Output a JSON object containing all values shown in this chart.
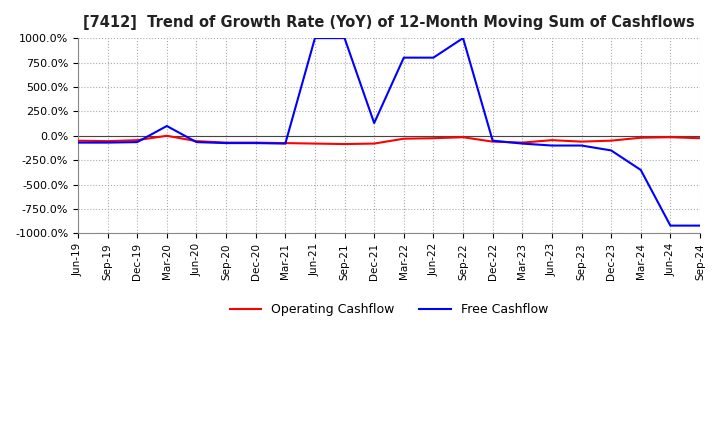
{
  "title": "[7412]  Trend of Growth Rate (YoY) of 12-Month Moving Sum of Cashflows",
  "ylim": [
    -1000,
    1000
  ],
  "yticks": [
    -1000,
    -750,
    -500,
    -250,
    0,
    250,
    500,
    750,
    1000
  ],
  "ytick_labels": [
    "-1000.0%",
    "-750.0%",
    "-500.0%",
    "-250.0%",
    "0.0%",
    "250.0%",
    "500.0%",
    "750.0%",
    "1000.0%"
  ],
  "background_color": "#ffffff",
  "plot_bg_color": "#ffffff",
  "grid_color": "#aaaaaa",
  "line_operating_color": "#ff0000",
  "line_free_color": "#0000ff",
  "legend_operating": "Operating Cashflow",
  "legend_free": "Free Cashflow",
  "x_labels": [
    "Jun-19",
    "Sep-19",
    "Dec-19",
    "Mar-20",
    "Jun-20",
    "Sep-20",
    "Dec-20",
    "Mar-21",
    "Jun-21",
    "Sep-21",
    "Dec-21",
    "Mar-22",
    "Jun-22",
    "Sep-22",
    "Dec-22",
    "Mar-23",
    "Jun-23",
    "Sep-23",
    "Dec-23",
    "Mar-24",
    "Jun-24",
    "Sep-24"
  ],
  "operating_cashflow": [
    -50,
    -55,
    -45,
    0,
    -55,
    -70,
    -70,
    -75,
    -80,
    -85,
    -80,
    -30,
    -25,
    -15,
    -60,
    -70,
    -45,
    -60,
    -50,
    -20,
    -15,
    -25
  ],
  "free_cashflow": [
    -70,
    -70,
    -65,
    100,
    -65,
    -75,
    -75,
    -80,
    1000,
    1000,
    130,
    800,
    800,
    1000,
    -50,
    -80,
    -100,
    -100,
    -150,
    -350,
    -920,
    -920
  ]
}
